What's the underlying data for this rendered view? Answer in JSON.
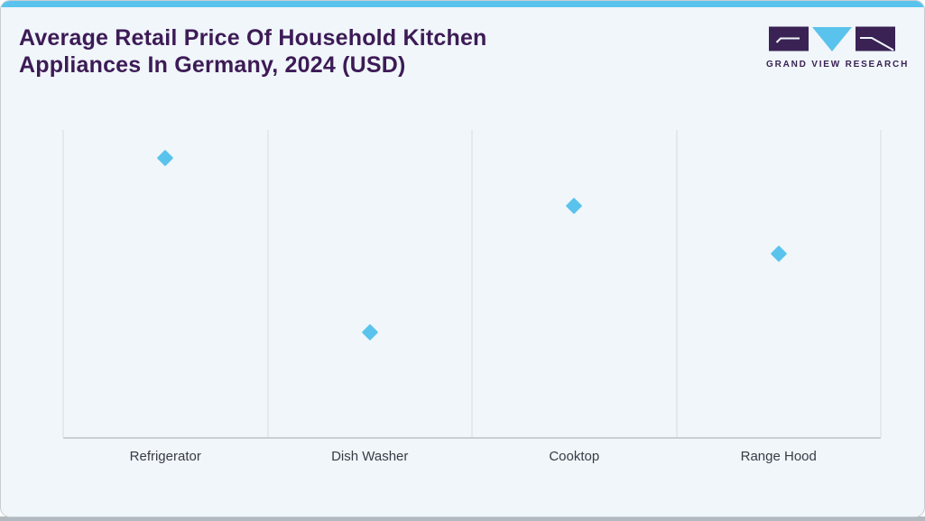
{
  "page": {
    "title": "Average Retail Price Of Household Kitchen Appliances In Germany, 2024 (USD)"
  },
  "brand": {
    "logo_text": "GRAND VIEW RESEARCH"
  },
  "colors": {
    "accent": "#5ac3ed",
    "title": "#3d1b56",
    "brand-purple": "#3a2254",
    "brand-cyan": "#5ac3ed",
    "card-bg": "#f0f6fa",
    "card-border": "#c9cdd1",
    "bottom-strip": "#b3b9c0",
    "marker": "#5ac3ed",
    "gridline": "#dadcde",
    "axis-line": "#cbcfd3",
    "axis-label": "#3a3b45"
  },
  "chart_data": {
    "type": "scatter",
    "marker_shape": "diamond",
    "title": "Average Retail Price Of Household Kitchen Appliances In Germany, 2024 (USD)",
    "categories": [
      "Refrigerator",
      "Dish Washer",
      "Cooktop",
      "Range Hood"
    ],
    "values": [
      1090,
      410,
      905,
      715
    ],
    "xlabel": "",
    "ylabel": "",
    "ylim": [
      0,
      1200
    ],
    "y_axis_labels_visible": false,
    "grid": "vertical-only",
    "legend": "none",
    "values_estimated_from_positions": true
  }
}
